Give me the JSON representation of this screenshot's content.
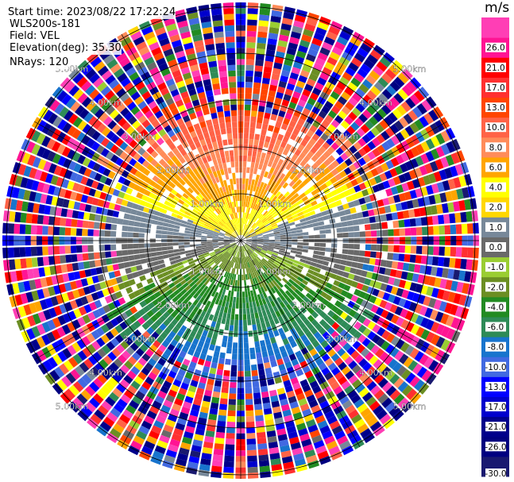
{
  "header": {
    "start_time": "Start time: 2023/08/22 17:22:24",
    "instrument": "WLS200s-181",
    "field": "Field: VEL",
    "elevation": "Elevation(deg): 35.30",
    "nrays": "NRays: 120"
  },
  "chart_data": {
    "type": "heatmap",
    "subtype": "ppi-polar",
    "field": "VEL",
    "n_rays": 120,
    "elevation_deg": 35.3,
    "range_rings_km": [
      1,
      2,
      3,
      4,
      5
    ],
    "range_ring_labels": [
      "1.00km",
      "2.00km",
      "3.00km",
      "4.00km",
      "5.00km"
    ],
    "colorbar": {
      "unit": "m/s",
      "levels": [
        -30,
        -26,
        -21,
        -17,
        -13,
        -10,
        -8,
        -6,
        -4,
        -2,
        -1,
        0,
        1,
        2,
        4,
        6,
        8,
        10,
        13,
        17,
        21,
        26
      ],
      "tick_labels": [
        "-30.0",
        "-26.0",
        "-21.0",
        "-17.0",
        "-13.0",
        "-10.0",
        "-8.0",
        "-6.0",
        "-4.0",
        "-2.0",
        "-1.0",
        "0.0",
        "1.0",
        "2.0",
        "4.0",
        "6.0",
        "8.0",
        "10.0",
        "13.0",
        "17.0",
        "21.0",
        "26.0"
      ],
      "colors": [
        "#191970",
        "#000080",
        "#00008b",
        "#0000cd",
        "#0000ff",
        "#4169e1",
        "#1874cd",
        "#2e8b57",
        "#228b22",
        "#6b8e23",
        "#9acd32",
        "#696969",
        "#778899",
        "#ffd700",
        "#ffff00",
        "#ffa500",
        "#ff8c5a",
        "#ff6347",
        "#ff4500",
        "#ff3030",
        "#ff0000",
        "#ff1493",
        "#ff3eb5"
      ]
    },
    "pattern_summary": {
      "near_field_positive_direction": "north",
      "near_field_negative_direction": "south",
      "outer_ranges": "noisy"
    }
  }
}
